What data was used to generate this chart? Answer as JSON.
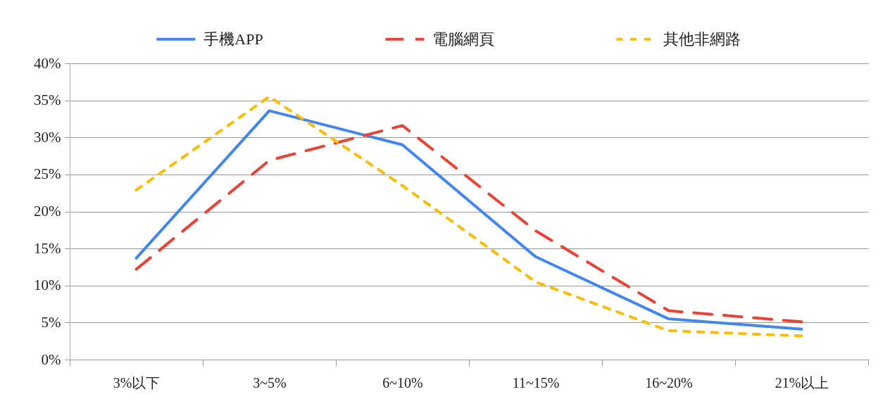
{
  "chart_data": {
    "type": "line",
    "categories": [
      "3%以下",
      "3~5%",
      "6~10%",
      "11~15%",
      "16~20%",
      "21%以上"
    ],
    "series": [
      {
        "name": "手機APP",
        "color": "#4285f4",
        "line_style": "solid",
        "values": [
          13.7,
          33.6,
          29.0,
          13.9,
          5.5,
          4.1
        ]
      },
      {
        "name": "電腦網頁",
        "color": "#ea4335",
        "line_style": "dashed",
        "values": [
          12.2,
          26.9,
          31.6,
          17.4,
          6.6,
          5.1
        ]
      },
      {
        "name": "其他非網路",
        "color": "#fbbc04",
        "line_style": "dotted",
        "values": [
          22.9,
          35.5,
          23.5,
          10.5,
          3.9,
          3.2
        ]
      }
    ],
    "ylim": [
      0,
      40
    ],
    "yticks": [
      {
        "value": 0,
        "label": "0%"
      },
      {
        "value": 5,
        "label": "5%"
      },
      {
        "value": 10,
        "label": "10%"
      },
      {
        "value": 15,
        "label": "15%"
      },
      {
        "value": 20,
        "label": "20%"
      },
      {
        "value": 25,
        "label": "25%"
      },
      {
        "value": 30,
        "label": "30%"
      },
      {
        "value": 35,
        "label": "35%"
      },
      {
        "value": 40,
        "label": "40%"
      }
    ],
    "grid": "y",
    "legend": "top"
  }
}
